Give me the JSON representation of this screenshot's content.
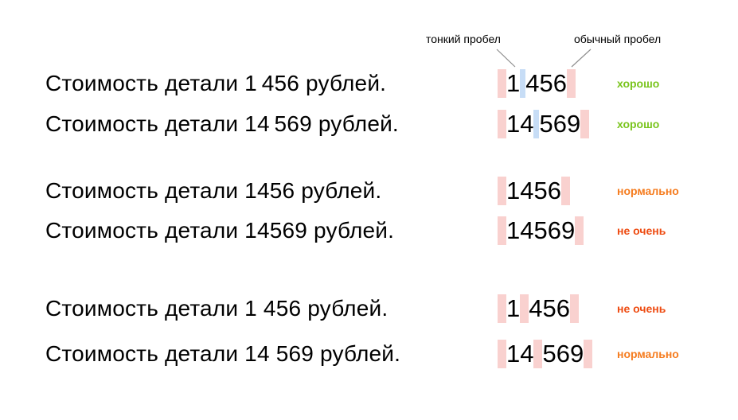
{
  "annotations": {
    "thin_space": "тонкий пробел",
    "regular_space": "обычный пробел"
  },
  "colors": {
    "thin_space_highlight": "#c7ddf6",
    "regular_space_highlight": "#f9d1cf",
    "good": "#79c41c",
    "ok": "#f57c1f",
    "bad": "#ee4b11",
    "text": "#000000",
    "connector": "#8f8f8f"
  },
  "groups": [
    {
      "rows": [
        {
          "sentence": "Стоимость детали 1 456 рублей.",
          "number_segments": [
            {
              "type": "space",
              "kind": "regular"
            },
            {
              "type": "digits",
              "text": "1"
            },
            {
              "type": "space",
              "kind": "thin"
            },
            {
              "type": "digits",
              "text": "456"
            },
            {
              "type": "space",
              "kind": "regular"
            }
          ],
          "verdict": {
            "label": "хорошо",
            "tone": "good"
          }
        },
        {
          "sentence": "Стоимость детали 14 569 рублей.",
          "number_segments": [
            {
              "type": "space",
              "kind": "regular"
            },
            {
              "type": "digits",
              "text": "14"
            },
            {
              "type": "space",
              "kind": "thin"
            },
            {
              "type": "digits",
              "text": "569"
            },
            {
              "type": "space",
              "kind": "regular"
            }
          ],
          "verdict": {
            "label": "хорошо",
            "tone": "good"
          }
        }
      ]
    },
    {
      "rows": [
        {
          "sentence": "Стоимость детали 1456 рублей.",
          "number_segments": [
            {
              "type": "space",
              "kind": "regular"
            },
            {
              "type": "digits",
              "text": "1456"
            },
            {
              "type": "space",
              "kind": "regular"
            }
          ],
          "verdict": {
            "label": "нормально",
            "tone": "ok"
          }
        },
        {
          "sentence": "Стоимость детали 14569 рублей.",
          "number_segments": [
            {
              "type": "space",
              "kind": "regular"
            },
            {
              "type": "digits",
              "text": "14569"
            },
            {
              "type": "space",
              "kind": "regular"
            }
          ],
          "verdict": {
            "label": "не очень",
            "tone": "bad"
          }
        }
      ]
    },
    {
      "rows": [
        {
          "sentence": "Стоимость детали 1 456 рублей.",
          "number_segments": [
            {
              "type": "space",
              "kind": "regular"
            },
            {
              "type": "digits",
              "text": "1"
            },
            {
              "type": "space",
              "kind": "regular"
            },
            {
              "type": "digits",
              "text": "456"
            },
            {
              "type": "space",
              "kind": "regular"
            }
          ],
          "verdict": {
            "label": "не очень",
            "tone": "bad"
          }
        },
        {
          "sentence": "Стоимость детали 14 569 рублей.",
          "number_segments": [
            {
              "type": "space",
              "kind": "regular"
            },
            {
              "type": "digits",
              "text": "14"
            },
            {
              "type": "space",
              "kind": "regular"
            },
            {
              "type": "digits",
              "text": "569"
            },
            {
              "type": "space",
              "kind": "regular"
            }
          ],
          "verdict": {
            "label": "нормально",
            "tone": "ok"
          }
        }
      ]
    }
  ]
}
